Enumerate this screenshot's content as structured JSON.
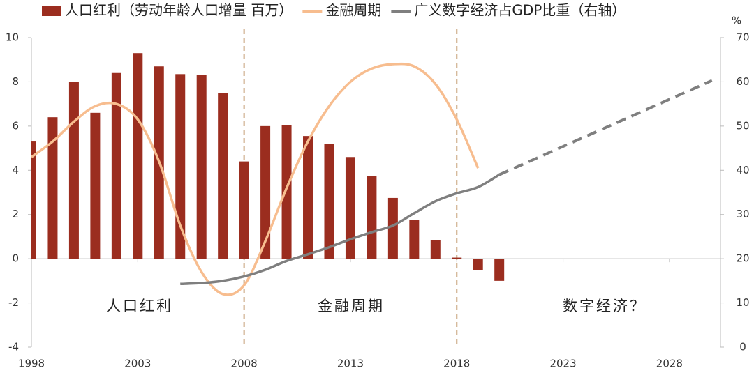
{
  "chart_data": {
    "type": "bar-line",
    "x": [
      1998,
      1999,
      2000,
      2001,
      2002,
      2003,
      2004,
      2005,
      2006,
      2007,
      2008,
      2009,
      2010,
      2011,
      2012,
      2013,
      2014,
      2015,
      2016,
      2017,
      2018,
      2019,
      2020
    ],
    "series": [
      {
        "name": "人口红利（劳动年龄人口增量 百万）",
        "type": "bar",
        "color": "#9b2d1f",
        "values": [
          5.3,
          6.4,
          8.0,
          6.6,
          8.4,
          9.3,
          8.7,
          8.35,
          8.3,
          7.5,
          4.4,
          6.0,
          6.05,
          5.55,
          5.2,
          4.6,
          3.75,
          2.75,
          1.75,
          0.85,
          0.05,
          -0.5,
          -1.0
        ]
      },
      {
        "name": "金融周期",
        "type": "line",
        "color": "#f7bd8f",
        "x": [
          1998,
          1999,
          2000,
          2001,
          2002,
          2003,
          2004,
          2005,
          2006,
          2007,
          2008,
          2009,
          2010,
          2011,
          2012,
          2013,
          2014,
          2015,
          2016,
          2017,
          2018,
          2019
        ],
        "values": [
          4.6,
          5.3,
          6.2,
          6.9,
          7.0,
          6.3,
          4.4,
          1.5,
          -0.6,
          -1.6,
          -1.2,
          0.8,
          3.2,
          5.3,
          6.9,
          8.0,
          8.6,
          8.8,
          8.7,
          7.9,
          6.3,
          4.1
        ]
      },
      {
        "name": "广义数字经济占GDP比重（右轴）",
        "type": "line",
        "color": "#7f7f7f",
        "axis": "y2",
        "dashed_from": 2020,
        "x": [
          2005,
          2006,
          2007,
          2008,
          2009,
          2010,
          2011,
          2012,
          2013,
          2014,
          2015,
          2016,
          2017,
          2018,
          2019,
          2020,
          2030
        ],
        "values": [
          14.3,
          14.5,
          15.0,
          16.0,
          17.5,
          19.5,
          21.0,
          22.6,
          24.4,
          26.0,
          27.5,
          30.3,
          33.0,
          34.8,
          36.2,
          39.0,
          60.3
        ]
      }
    ],
    "xlim": [
      1998,
      2030.4
    ],
    "xticks": [
      1998,
      2003,
      2008,
      2013,
      2018,
      2023,
      2028
    ],
    "ylim": [
      -4,
      10
    ],
    "yticks": [
      -4,
      -2,
      0,
      2,
      4,
      6,
      8,
      10
    ],
    "y2lim": [
      0,
      70
    ],
    "y2ticks": [
      0,
      10,
      20,
      30,
      40,
      50,
      60,
      70
    ],
    "y2label": "%",
    "vlines": [
      2008,
      2018
    ],
    "annotations": [
      "人口红利",
      "金融周期",
      "数字经济？"
    ]
  }
}
